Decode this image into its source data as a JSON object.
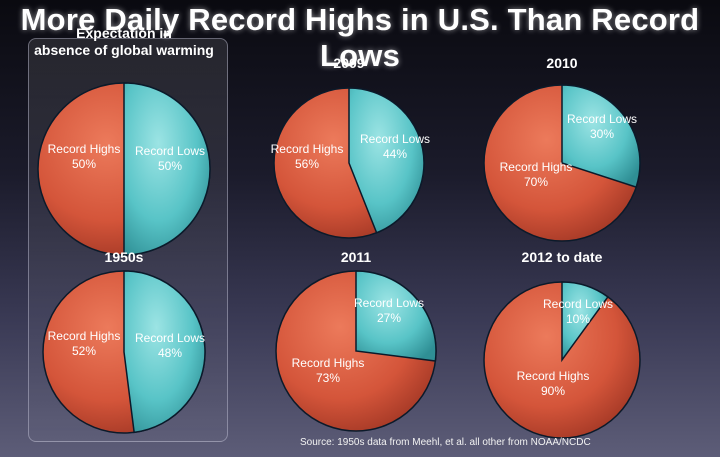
{
  "page": {
    "title": "More Daily Record Highs in U.S. Than Record Lows",
    "source": "Source: 1950s data from Meehl, et al. all other from NOAA/NCDC"
  },
  "colors": {
    "record_highs": "#d4553a",
    "record_lows": "#58c4c7",
    "outline": "#0b1a2a"
  },
  "chart_data": [
    {
      "type": "pie",
      "title": "Expectation in\nabsence of global warming",
      "slices": [
        {
          "label": "Record Highs",
          "value": 50
        },
        {
          "label": "Record Lows",
          "value": 50
        }
      ]
    },
    {
      "type": "pie",
      "title": "2009",
      "slices": [
        {
          "label": "Record Highs",
          "value": 56
        },
        {
          "label": "Record Lows",
          "value": 44
        }
      ]
    },
    {
      "type": "pie",
      "title": "2010",
      "slices": [
        {
          "label": "Record Highs",
          "value": 70
        },
        {
          "label": "Record Lows",
          "value": 30
        }
      ]
    },
    {
      "type": "pie",
      "title": "1950s",
      "slices": [
        {
          "label": "Record Highs",
          "value": 52
        },
        {
          "label": "Record Lows",
          "value": 48
        }
      ]
    },
    {
      "type": "pie",
      "title": "2011",
      "slices": [
        {
          "label": "Record Highs",
          "value": 73
        },
        {
          "label": "Record Lows",
          "value": 27
        }
      ]
    },
    {
      "type": "pie",
      "title": "2012 to date",
      "slices": [
        {
          "label": "Record Highs",
          "value": 90
        },
        {
          "label": "Record Lows",
          "value": 10
        }
      ]
    }
  ]
}
